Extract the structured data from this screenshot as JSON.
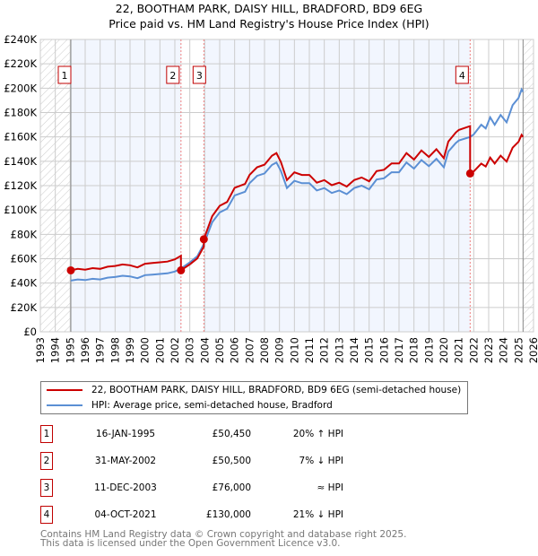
{
  "title_line1": "22, BOOTHAM PARK, DAISY HILL, BRADFORD, BD9 6EG",
  "title_line2": "Price paid vs. HM Land Registry's House Price Index (HPI)",
  "chart_data": {
    "type": "line",
    "xlim": [
      1993,
      2026
    ],
    "ylim": [
      0,
      240000
    ],
    "yticks": [
      0,
      20000,
      40000,
      60000,
      80000,
      100000,
      120000,
      140000,
      160000,
      180000,
      200000,
      220000,
      240000
    ],
    "ytick_labels": [
      "£0",
      "£20K",
      "£40K",
      "£60K",
      "£80K",
      "£100K",
      "£120K",
      "£140K",
      "£160K",
      "£180K",
      "£200K",
      "£220K",
      "£240K"
    ],
    "xticks": [
      1993,
      1994,
      1995,
      1996,
      1997,
      1998,
      1999,
      2000,
      2001,
      2002,
      2003,
      2004,
      2005,
      2006,
      2007,
      2008,
      2009,
      2010,
      2011,
      2012,
      2013,
      2014,
      2015,
      2016,
      2017,
      2018,
      2019,
      2020,
      2021,
      2022,
      2023,
      2024,
      2025,
      2026
    ],
    "grid": true,
    "hatched_ranges": [
      [
        1993,
        1995.04
      ],
      [
        2025.3,
        2026
      ]
    ],
    "owned_ranges": [
      [
        1995.04,
        2002.41
      ],
      [
        2003.94,
        2021.76
      ]
    ],
    "series": [
      {
        "name": "22, BOOTHAM PARK, DAISY HILL, BRADFORD, BD9 6EG (semi-detached house)",
        "color": "#cc0000"
      },
      {
        "name": "HPI: Average price, semi-detached house, Bradford",
        "color": "#5b8fd4",
        "x": [
          1995.04,
          1995.5,
          1996,
          1996.5,
          1997,
          1997.5,
          1998,
          1998.5,
          1999,
          1999.5,
          2000,
          2000.5,
          2001,
          2001.5,
          2002,
          2002.41,
          2003,
          2003.5,
          2003.94,
          2004.5,
          2005,
          2005.5,
          2006,
          2006.7,
          2007,
          2007.5,
          2008,
          2008.5,
          2008.8,
          2009.1,
          2009.5,
          2010,
          2010.5,
          2011,
          2011.5,
          2012,
          2012.5,
          2013,
          2013.5,
          2014,
          2014.5,
          2015,
          2015.5,
          2016,
          2016.5,
          2017,
          2017.5,
          2018,
          2018.5,
          2019,
          2019.5,
          2020,
          2020.3,
          2020.8,
          2021,
          2021.76,
          2022,
          2022.5,
          2022.8,
          2023.1,
          2023.4,
          2023.8,
          2024.2,
          2024.6,
          2025,
          2025.2,
          2025.3
        ],
        "y": [
          42000,
          43000,
          42500,
          43500,
          43000,
          44500,
          45000,
          46000,
          45500,
          44000,
          46500,
          47000,
          47500,
          48000,
          49500,
          52000,
          57000,
          62000,
          72000,
          90000,
          98000,
          101000,
          112000,
          115000,
          122000,
          128000,
          130000,
          137000,
          139000,
          132000,
          118000,
          124000,
          122000,
          122000,
          116000,
          118000,
          114000,
          116000,
          113000,
          118000,
          120000,
          117000,
          125000,
          126000,
          131000,
          131000,
          139000,
          134000,
          141000,
          136000,
          142000,
          135000,
          148000,
          155000,
          157000,
          160000,
          162000,
          170000,
          167000,
          176000,
          170000,
          178000,
          172000,
          186000,
          192000,
          199000,
          197000
        ]
      }
    ],
    "sales": [
      {
        "label": "1",
        "x": 1995.04,
        "date": "16-JAN-1995",
        "price": 50450,
        "price_text": "£50,450",
        "hpi_text": "20% ↑ HPI"
      },
      {
        "label": "2",
        "x": 2002.41,
        "date": "31-MAY-2002",
        "price": 50500,
        "price_text": "£50,500",
        "hpi_text": "7% ↓ HPI"
      },
      {
        "label": "3",
        "x": 2003.94,
        "date": "11-DEC-2003",
        "price": 76000,
        "price_text": "£76,000",
        "hpi_text": "≈ HPI"
      },
      {
        "label": "4",
        "x": 2021.76,
        "date": "04-OCT-2021",
        "price": 130000,
        "price_text": "£130,000",
        "hpi_text": "21% ↓ HPI"
      }
    ]
  },
  "footer_line1": "Contains HM Land Registry data © Crown copyright and database right 2025.",
  "footer_line2": "This data is licensed under the Open Government Licence v3.0."
}
